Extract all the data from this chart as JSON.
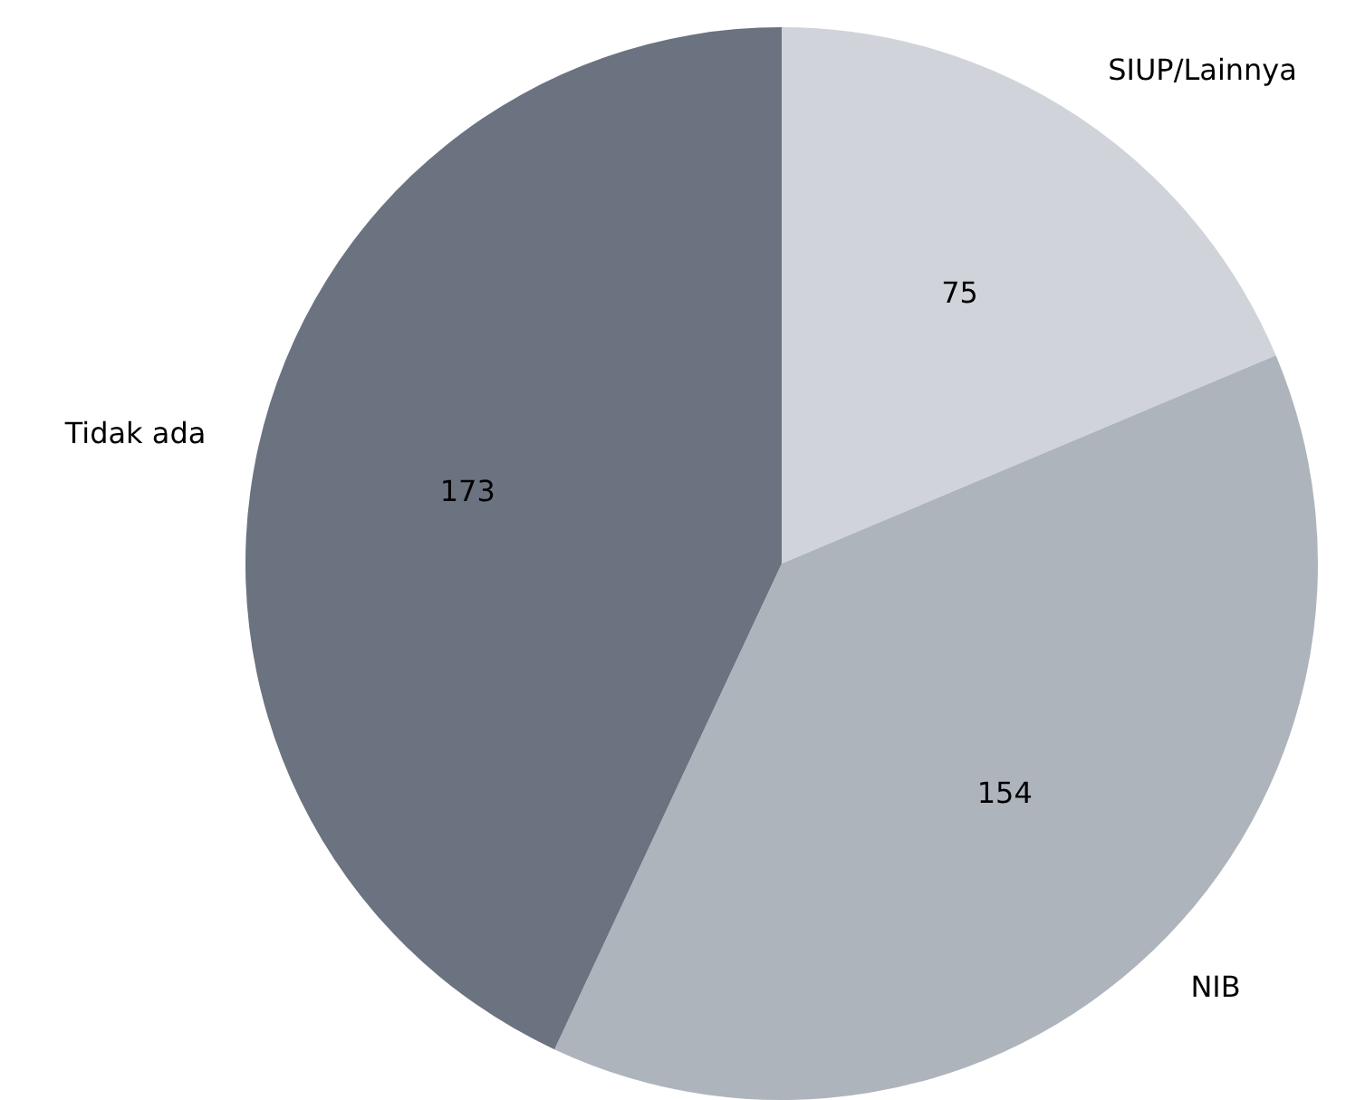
{
  "chart_data": {
    "type": "pie",
    "categories": [
      "SIUP/Lainnya",
      "NIB",
      "Tidak ada"
    ],
    "values": [
      75,
      154,
      173
    ],
    "colors": [
      "#d0d4da",
      "#adb4bc",
      "#6b7280"
    ],
    "data_labels": true,
    "legend": false
  }
}
